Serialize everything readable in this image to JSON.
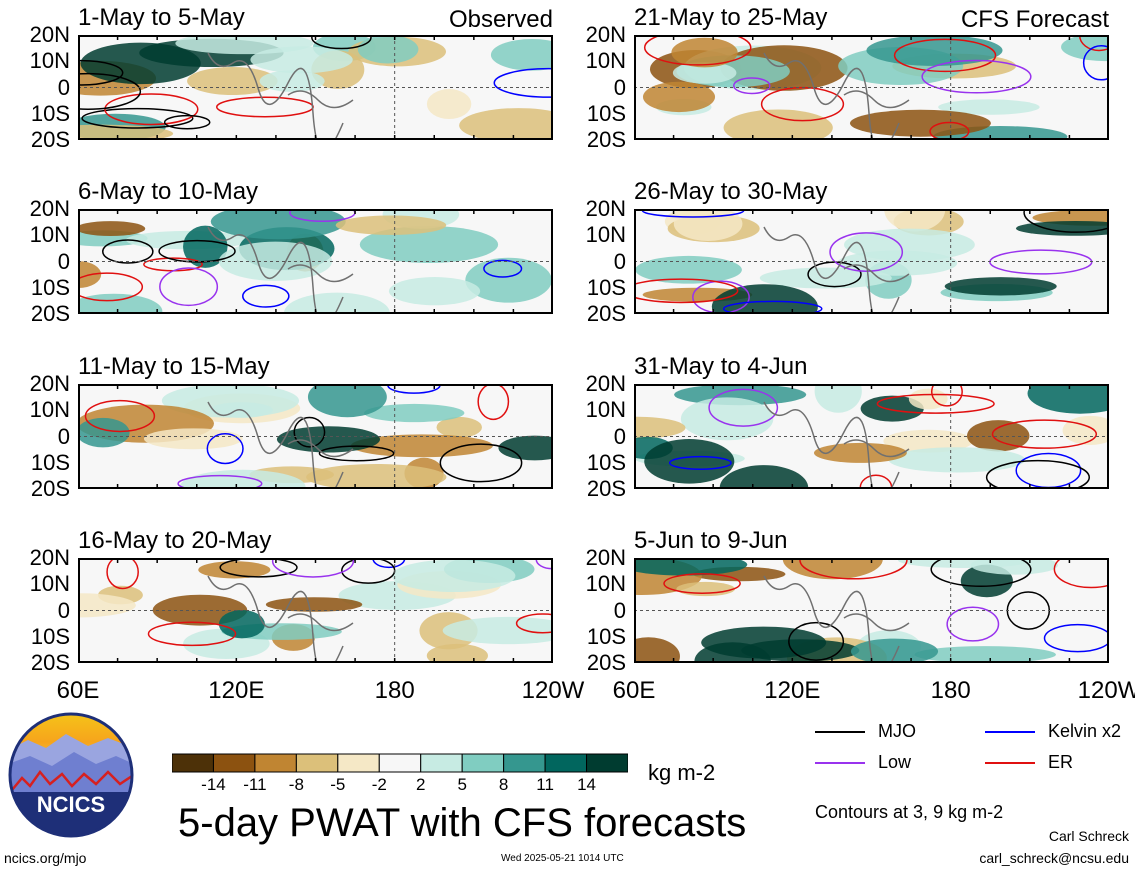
{
  "chart_data": {
    "type": "heatmap",
    "title": "5-day PWAT with CFS forecasts",
    "units": "kg m-2",
    "lat_ticks": [
      "20N",
      "10N",
      "0",
      "10S",
      "20S"
    ],
    "lon_ticks": [
      "60E",
      "120E",
      "180",
      "120W"
    ],
    "lat_range": [
      -20,
      20
    ],
    "lon_range": [
      60,
      240
    ],
    "colorbar": {
      "levels": [
        "-14",
        "-11",
        "-8",
        "-5",
        "-2",
        "2",
        "5",
        "8",
        "11",
        "14"
      ],
      "colors": [
        "#4d3108",
        "#8c5210",
        "#c08532",
        "#dcc07a",
        "#f5e8c6",
        "#f7f7f7",
        "#c7ebe3",
        "#80cdc1",
        "#35978f",
        "#01665e",
        "#003c30"
      ]
    },
    "contours_note": "Contours at 3, 9 kg m-2",
    "legend": [
      {
        "label": "MJO",
        "color": "#000000"
      },
      {
        "label": "Kelvin x2",
        "color": "#0000ff"
      },
      {
        "label": "Low",
        "color": "#9933ee"
      },
      {
        "label": "ER",
        "color": "#e01010"
      }
    ],
    "panels": [
      {
        "title": "1-May to 5-May",
        "tag": "Observed",
        "column": "left",
        "row": 0
      },
      {
        "title": "6-May to 10-May",
        "tag": "",
        "column": "left",
        "row": 1
      },
      {
        "title": "11-May to 15-May",
        "tag": "",
        "column": "left",
        "row": 2
      },
      {
        "title": "16-May to 20-May",
        "tag": "",
        "column": "left",
        "row": 3
      },
      {
        "title": "21-May to 25-May",
        "tag": "CFS Forecast",
        "column": "right",
        "row": 0
      },
      {
        "title": "26-May to 30-May",
        "tag": "",
        "column": "right",
        "row": 1
      },
      {
        "title": "31-May to 4-Jun",
        "tag": "",
        "column": "right",
        "row": 2
      },
      {
        "title": "5-Jun to 9-Jun",
        "tag": "",
        "column": "right",
        "row": 3
      }
    ]
  },
  "logo": {
    "text": "NCICS"
  },
  "footer": {
    "url": "ncics.org/mjo",
    "timestamp": "Wed 2025-05-21 1014 UTC",
    "author": "Carl Schreck",
    "email": "carl_schreck@ncsu.edu"
  }
}
